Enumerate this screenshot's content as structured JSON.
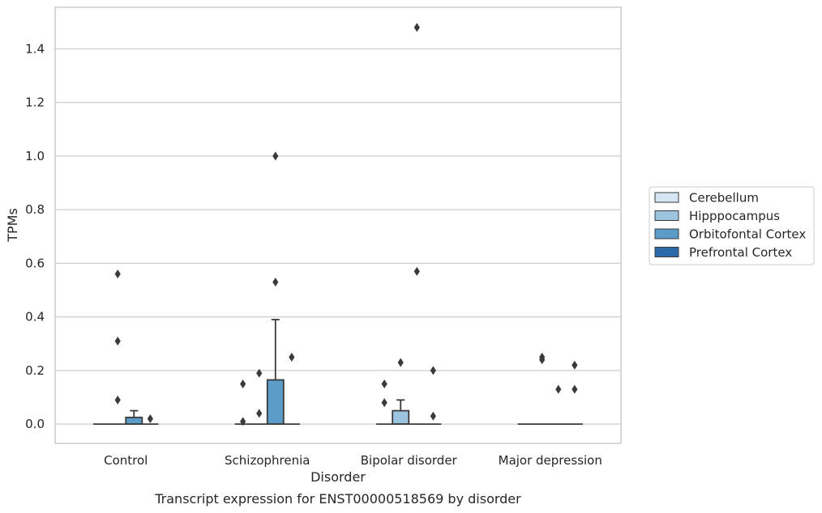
{
  "chart_data": {
    "type": "box",
    "title": "",
    "caption": "Transcript expression for ENST00000518569 by disorder",
    "xlabel": "Disorder",
    "ylabel": "TPMs",
    "ylim": [
      -0.072,
      1.555
    ],
    "yticks": [
      0.0,
      0.2,
      0.4,
      0.6,
      0.8,
      1.0,
      1.2,
      1.4
    ],
    "ytick_labels": [
      "0.0",
      "0.2",
      "0.4",
      "0.6",
      "0.8",
      "1.0",
      "1.2",
      "1.4"
    ],
    "grid": "horizontal",
    "legend_position": "right",
    "categories": [
      "Control",
      "Schizophrenia",
      "Bipolar disorder",
      "Major depression"
    ],
    "series": [
      {
        "name": "Cerebellum",
        "color": "#d6e5f3",
        "boxes": [
          {
            "category": "Control",
            "q1": 0,
            "median": 0,
            "q3": 0,
            "whisker_low": 0,
            "whisker_high": 0,
            "outliers": []
          },
          {
            "category": "Schizophrenia",
            "q1": 0,
            "median": 0,
            "q3": 0,
            "whisker_low": 0,
            "whisker_high": 0,
            "outliers": [
              0.15,
              0.01
            ]
          },
          {
            "category": "Bipolar disorder",
            "q1": 0,
            "median": 0,
            "q3": 0,
            "whisker_low": 0,
            "whisker_high": 0,
            "outliers": [
              0.15,
              0.08
            ]
          },
          {
            "category": "Major depression",
            "q1": 0,
            "median": 0,
            "q3": 0,
            "whisker_low": 0,
            "whisker_high": 0,
            "outliers": []
          }
        ]
      },
      {
        "name": "Hipppocampus",
        "color": "#9dc4de",
        "boxes": [
          {
            "category": "Control",
            "q1": 0,
            "median": 0,
            "q3": 0,
            "whisker_low": 0,
            "whisker_high": 0,
            "outliers": [
              0.56,
              0.31,
              0.09
            ]
          },
          {
            "category": "Schizophrenia",
            "q1": 0,
            "median": 0,
            "q3": 0,
            "whisker_low": 0,
            "whisker_high": 0,
            "outliers": [
              0.19,
              0.04
            ]
          },
          {
            "category": "Bipolar disorder",
            "q1": 0,
            "median": 0,
            "q3": 0.05,
            "whisker_low": 0,
            "whisker_high": 0.09,
            "outliers": [
              0.23
            ]
          },
          {
            "category": "Major depression",
            "q1": 0,
            "median": 0,
            "q3": 0,
            "whisker_low": 0,
            "whisker_high": 0,
            "outliers": [
              0.25,
              0.24
            ]
          }
        ]
      },
      {
        "name": "Orbitofontal Cortex",
        "color": "#5b9cc8",
        "boxes": [
          {
            "category": "Control",
            "q1": 0,
            "median": 0,
            "q3": 0.025,
            "whisker_low": 0,
            "whisker_high": 0.05,
            "outliers": []
          },
          {
            "category": "Schizophrenia",
            "q1": 0,
            "median": 0,
            "q3": 0.165,
            "whisker_low": 0,
            "whisker_high": 0.39,
            "outliers": [
              1.0,
              0.53
            ]
          },
          {
            "category": "Bipolar disorder",
            "q1": 0,
            "median": 0,
            "q3": 0,
            "whisker_low": 0,
            "whisker_high": 0,
            "outliers": [
              1.48,
              0.57
            ]
          },
          {
            "category": "Major depression",
            "q1": 0,
            "median": 0,
            "q3": 0,
            "whisker_low": 0,
            "whisker_high": 0,
            "outliers": [
              0.13
            ]
          }
        ]
      },
      {
        "name": "Prefrontal Cortex",
        "color": "#2b6aa7",
        "boxes": [
          {
            "category": "Control",
            "q1": 0,
            "median": 0,
            "q3": 0,
            "whisker_low": 0,
            "whisker_high": 0,
            "outliers": [
              0.02
            ]
          },
          {
            "category": "Schizophrenia",
            "q1": 0,
            "median": 0,
            "q3": 0,
            "whisker_low": 0,
            "whisker_high": 0,
            "outliers": [
              0.25
            ]
          },
          {
            "category": "Bipolar disorder",
            "q1": 0,
            "median": 0,
            "q3": 0,
            "whisker_low": 0,
            "whisker_high": 0,
            "outliers": [
              0.2,
              0.03
            ]
          },
          {
            "category": "Major depression",
            "q1": 0,
            "median": 0,
            "q3": 0,
            "whisker_low": 0,
            "whisker_high": 0,
            "outliers": [
              0.22,
              0.13
            ]
          }
        ]
      }
    ]
  }
}
